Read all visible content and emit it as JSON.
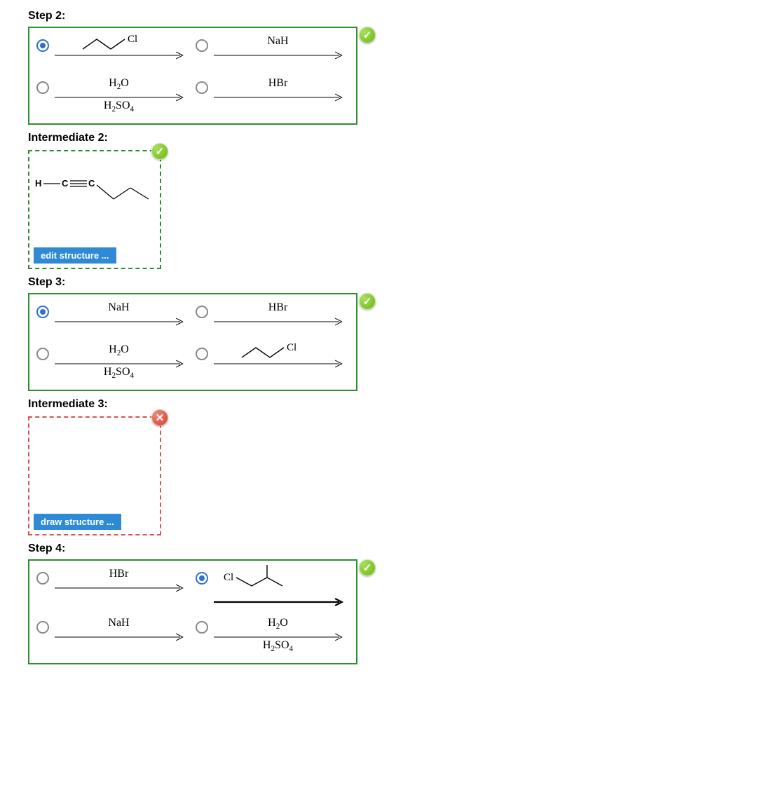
{
  "colors": {
    "correct_border": "#2e8b2e",
    "incorrect_border": "#d9534f",
    "button_bg": "#2f8ad6",
    "radio_selected": "#2f6fd4"
  },
  "step2": {
    "label": "Step 2:",
    "status": "correct",
    "options": [
      {
        "id": "s2o1",
        "selected": true,
        "type": "mol_propylcl",
        "top": "",
        "bot": ""
      },
      {
        "id": "s2o2",
        "selected": false,
        "type": "text",
        "top": "NaH",
        "bot": ""
      },
      {
        "id": "s2o3",
        "selected": false,
        "type": "text",
        "top": "H2O",
        "bot": "H2SO4"
      },
      {
        "id": "s2o4",
        "selected": false,
        "type": "text",
        "top": "HBr",
        "bot": ""
      }
    ]
  },
  "intermediate2": {
    "label": "Intermediate 2:",
    "status": "correct",
    "button": "edit structure ...",
    "structure": "pentyne_terminal"
  },
  "step3": {
    "label": "Step 3:",
    "status": "correct",
    "options": [
      {
        "id": "s3o1",
        "selected": true,
        "type": "text",
        "top": "NaH",
        "bot": ""
      },
      {
        "id": "s3o2",
        "selected": false,
        "type": "text",
        "top": "HBr",
        "bot": ""
      },
      {
        "id": "s3o3",
        "selected": false,
        "type": "text",
        "top": "H2O",
        "bot": "H2SO4"
      },
      {
        "id": "s3o4",
        "selected": false,
        "type": "mol_propylcl",
        "top": "",
        "bot": ""
      }
    ]
  },
  "intermediate3": {
    "label": "Intermediate 3:",
    "status": "incorrect",
    "button": "draw structure ...",
    "structure": null
  },
  "step4": {
    "label": "Step 4:",
    "status": "correct",
    "options": [
      {
        "id": "s4o1",
        "selected": false,
        "type": "text",
        "top": "HBr",
        "bot": ""
      },
      {
        "id": "s4o2",
        "selected": true,
        "type": "mol_isobutylcl_heavy",
        "top": "",
        "bot": ""
      },
      {
        "id": "s4o3",
        "selected": false,
        "type": "text",
        "top": "NaH",
        "bot": ""
      },
      {
        "id": "s4o4",
        "selected": false,
        "type": "text",
        "top": "H2O",
        "bot": "H2SO4"
      }
    ]
  }
}
